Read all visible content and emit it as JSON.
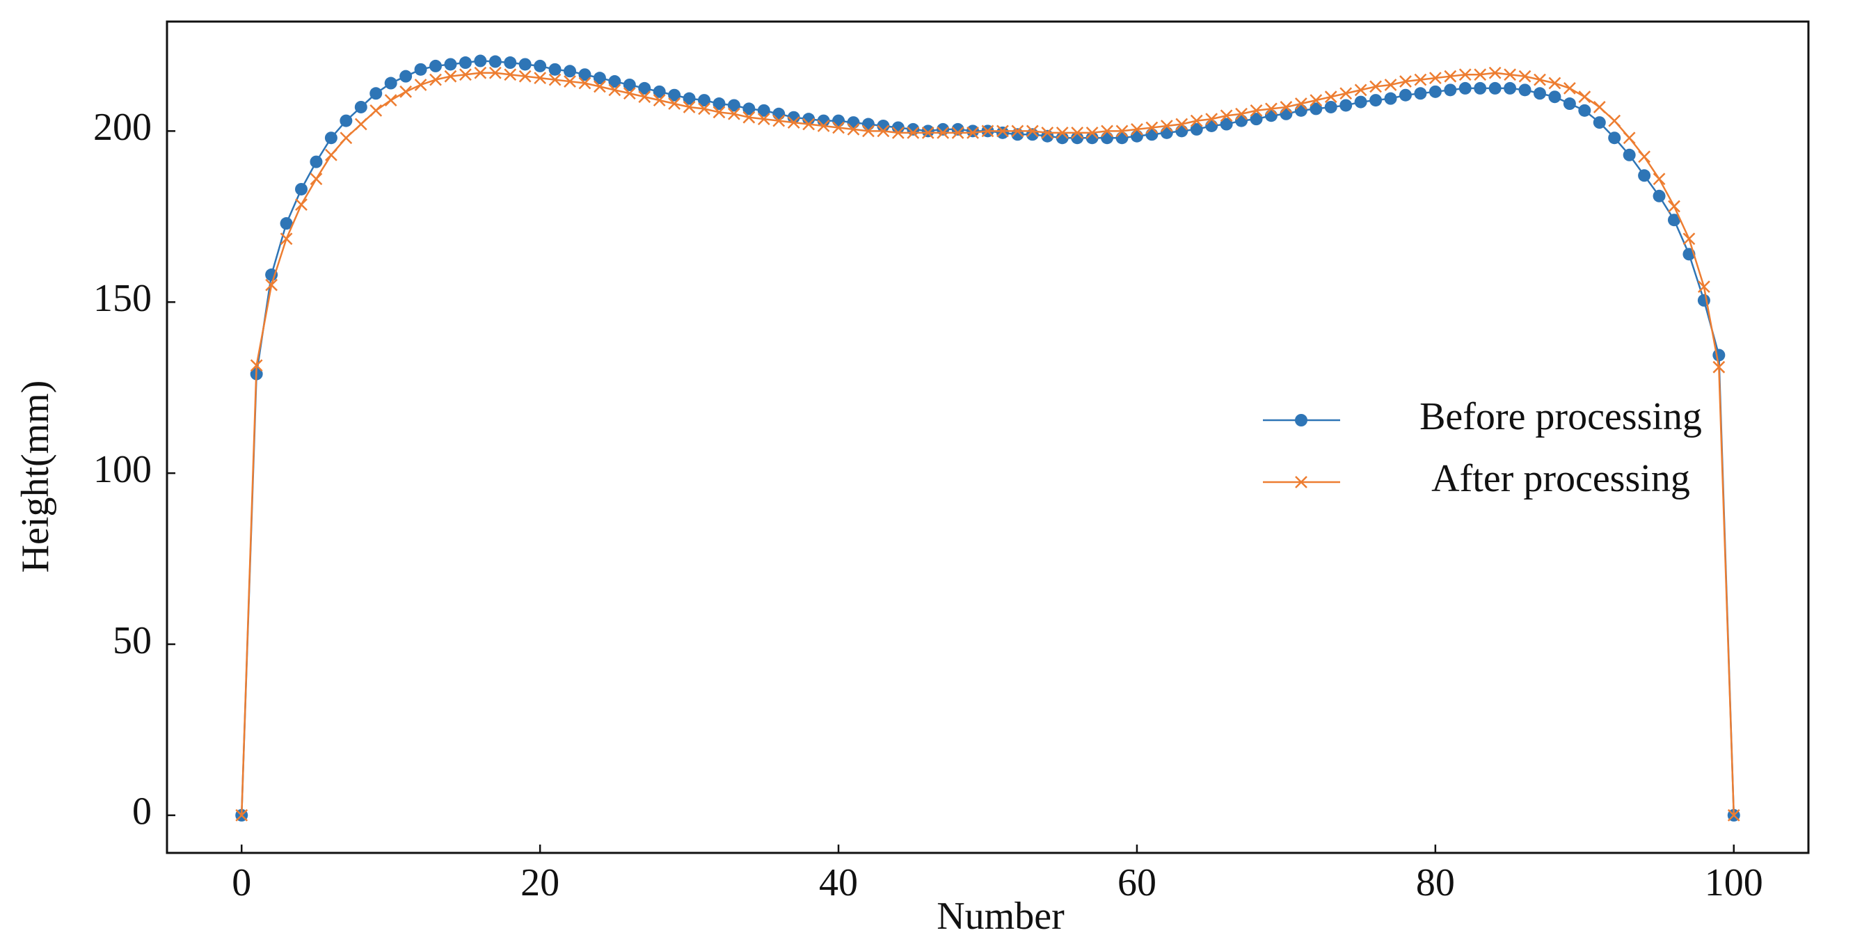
{
  "chart_data": {
    "type": "line",
    "xlabel": "Number",
    "ylabel": "Height(mm)",
    "x": [
      0,
      1,
      2,
      3,
      4,
      5,
      6,
      7,
      8,
      9,
      10,
      11,
      12,
      13,
      14,
      15,
      16,
      17,
      18,
      19,
      20,
      21,
      22,
      23,
      24,
      25,
      26,
      27,
      28,
      29,
      30,
      31,
      32,
      33,
      34,
      35,
      36,
      37,
      38,
      39,
      40,
      41,
      42,
      43,
      44,
      45,
      46,
      47,
      48,
      49,
      50,
      51,
      52,
      53,
      54,
      55,
      56,
      57,
      58,
      59,
      60,
      61,
      62,
      63,
      64,
      65,
      66,
      67,
      68,
      69,
      70,
      71,
      72,
      73,
      74,
      75,
      76,
      77,
      78,
      79,
      80,
      81,
      82,
      83,
      84,
      85,
      86,
      87,
      88,
      89,
      90,
      91,
      92,
      93,
      94,
      95,
      96,
      97,
      98,
      99,
      100
    ],
    "series": [
      {
        "name": "Before processing",
        "color": "#2e75b6",
        "marker": "circle",
        "values": [
          0,
          129,
          158,
          173,
          183,
          191,
          198,
          203,
          207,
          211,
          214,
          216,
          218,
          219,
          219.5,
          220,
          220.5,
          220.3,
          220,
          219.5,
          219,
          218,
          217.5,
          216.5,
          215.5,
          214.5,
          213.5,
          212.5,
          211.5,
          210.5,
          209.5,
          209,
          208,
          207.5,
          206.5,
          206,
          205,
          204,
          203.5,
          203,
          203,
          202.5,
          202,
          201.5,
          201,
          200.5,
          200,
          200.5,
          200.5,
          200,
          200,
          199.5,
          199,
          199,
          198.5,
          198,
          198,
          198,
          198,
          198,
          198.5,
          199,
          199.5,
          200,
          200.5,
          201.5,
          202,
          203,
          203.5,
          204.5,
          205,
          206,
          206.5,
          207,
          207.5,
          208.5,
          209,
          209.5,
          210.5,
          211,
          211.5,
          212,
          212.5,
          212.5,
          212.5,
          212.5,
          212,
          211,
          210,
          208,
          206,
          202.5,
          198,
          193,
          187,
          181,
          174,
          164,
          150.5,
          134.5,
          0
        ]
      },
      {
        "name": "After processing",
        "color": "#ed7d31",
        "marker": "x",
        "values": [
          0,
          131.5,
          155,
          168.5,
          178.5,
          186,
          193,
          198,
          202,
          206,
          209,
          211.5,
          213.5,
          215,
          216,
          216.5,
          217,
          217,
          216.5,
          216,
          215.5,
          215,
          214.5,
          214,
          213,
          212,
          211,
          210,
          209,
          208,
          207,
          206.5,
          205.5,
          205,
          204,
          203.5,
          203,
          202.5,
          202,
          201.5,
          201,
          200.5,
          200,
          200,
          199.5,
          199.5,
          199.5,
          199.5,
          199.5,
          199.5,
          200,
          200,
          200,
          200,
          199.5,
          199.5,
          199.5,
          199.5,
          200,
          200,
          200.5,
          201,
          201.5,
          202,
          203,
          203.5,
          204.5,
          205,
          206,
          206.5,
          207,
          208,
          209,
          210,
          211,
          212,
          213,
          213.5,
          214.5,
          215,
          215.5,
          216,
          216.5,
          216.5,
          217,
          216.5,
          216,
          215,
          214,
          212.5,
          210,
          207,
          203,
          198,
          192.5,
          186,
          178,
          168.5,
          154.5,
          131,
          0
        ]
      }
    ],
    "xlim": [
      -5,
      105
    ],
    "ylim": [
      -11,
      232
    ],
    "xticks": [
      0,
      20,
      40,
      60,
      80,
      100
    ],
    "yticks": [
      0,
      50,
      100,
      150,
      200
    ],
    "legend": "center right",
    "grid": false
  }
}
